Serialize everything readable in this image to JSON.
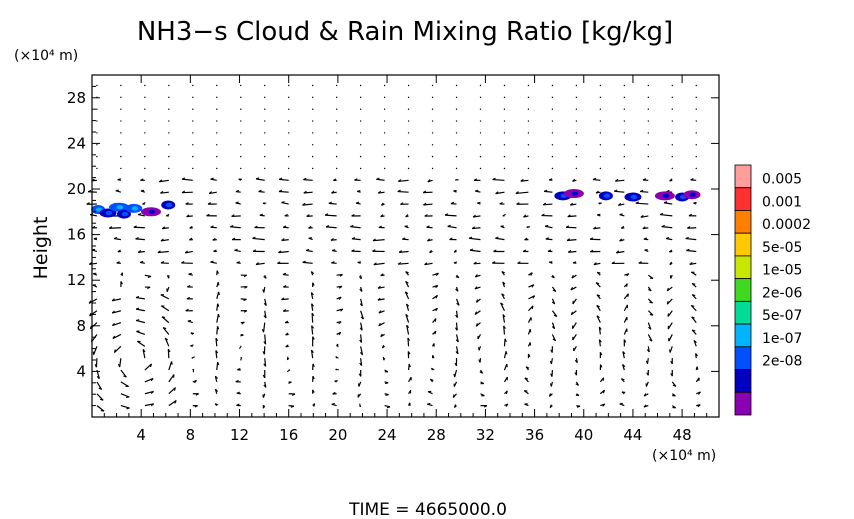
{
  "chart_data": {
    "type": "heatmap",
    "title": "NH3−s Cloud & Rain Mixing Ratio [kg/kg]",
    "ylabel": "Height",
    "x_unit": "(×10⁴ m)",
    "y_unit": "(×10⁴ m)",
    "footer": "TIME  =  4665000.0",
    "xlim": [
      0,
      51
    ],
    "ylim": [
      0,
      30
    ],
    "x_ticks": [
      4,
      8,
      12,
      16,
      20,
      24,
      28,
      32,
      36,
      40,
      44,
      48
    ],
    "y_ticks": [
      4,
      8,
      12,
      16,
      20,
      24,
      28
    ],
    "colorbar": {
      "labels": [
        "0.005",
        "0.001",
        "0.0002",
        "5e-05",
        "1e-05",
        "2e-06",
        "5e-07",
        "1e-07",
        "2e-08"
      ],
      "colors": [
        "#ff9c9c",
        "#ff3030",
        "#ff8000",
        "#ffc800",
        "#c8e600",
        "#40d820",
        "#00dc96",
        "#00b4ff",
        "#0050ff",
        "#0000c0",
        "#8c00b4"
      ]
    },
    "cloud_patches": [
      {
        "x": 0.5,
        "y": 18.2,
        "level": 8
      },
      {
        "x": 1.3,
        "y": 17.9,
        "level": 9
      },
      {
        "x": 2.2,
        "y": 18.4,
        "level": 8
      },
      {
        "x": 2.6,
        "y": 17.8,
        "level": 9
      },
      {
        "x": 3.4,
        "y": 18.3,
        "level": 8
      },
      {
        "x": 4.8,
        "y": 18.0,
        "level": 10
      },
      {
        "x": 6.2,
        "y": 18.6,
        "level": 9
      },
      {
        "x": 38.3,
        "y": 19.4,
        "level": 9
      },
      {
        "x": 39.2,
        "y": 19.6,
        "level": 10
      },
      {
        "x": 41.8,
        "y": 19.4,
        "level": 9
      },
      {
        "x": 44.0,
        "y": 19.3,
        "level": 9
      },
      {
        "x": 46.6,
        "y": 19.4,
        "level": 10
      },
      {
        "x": 48.0,
        "y": 19.3,
        "level": 9
      },
      {
        "x": 48.8,
        "y": 19.5,
        "level": 10
      }
    ]
  }
}
